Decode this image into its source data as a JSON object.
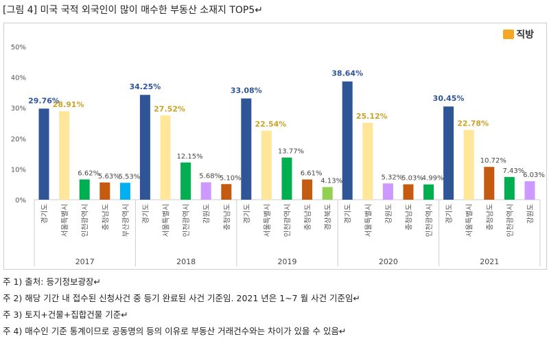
{
  "title": "[그림 4] 미국 국적 외국인이 많이 매수한 부동산 소재지 TOP5↵",
  "logo": "직방",
  "notes": [
    "주 1) 출처: 등기정보광장↵",
    "주 2) 해당 기간 내 접수된 신청사건 중 등기 완료된 사건 기준임. 2021 년은 1~7 월 사건 기준임↵",
    "주 3) 토지+건물+집합건물 기준↵",
    "주 4) 매수인 기준 통계이므로 공동명의 등의 이유로 부동산 거래건수와는 차이가 있을 수 있음↵"
  ],
  "chart_data": {
    "type": "bar",
    "ylim": [
      0,
      50
    ],
    "yticks": [
      "0%",
      "10%",
      "20%",
      "30%",
      "40%",
      "50%"
    ],
    "grid": false,
    "colors": {
      "경기도": "#2F5597",
      "서울특별시": "#FFE699",
      "인천광역시": "#00B050",
      "충청남도": "#C55A11",
      "부산광역시": "#00B0F0",
      "강원도": "#CC99FF",
      "경상북도": "#92D050"
    },
    "groups": [
      {
        "year": "2017",
        "bars": [
          {
            "region": "경기도",
            "value": 29.76,
            "label": "29.76%"
          },
          {
            "region": "서울특별시",
            "value": 28.91,
            "label": "28.91%"
          },
          {
            "region": "인천광역시",
            "value": 6.62,
            "label": "6.62%"
          },
          {
            "region": "충청남도",
            "value": 5.63,
            "label": "5.63%"
          },
          {
            "region": "부산광역시",
            "value": 5.53,
            "label": "5.53%"
          }
        ]
      },
      {
        "year": "2018",
        "bars": [
          {
            "region": "경기도",
            "value": 34.25,
            "label": "34.25%"
          },
          {
            "region": "서울특별시",
            "value": 27.52,
            "label": "27.52%"
          },
          {
            "region": "인천광역시",
            "value": 12.15,
            "label": "12.15%"
          },
          {
            "region": "강원도",
            "value": 5.68,
            "label": "5.68%"
          },
          {
            "region": "충청남도",
            "value": 5.1,
            "label": "5.10%"
          }
        ]
      },
      {
        "year": "2019",
        "bars": [
          {
            "region": "경기도",
            "value": 33.08,
            "label": "33.08%"
          },
          {
            "region": "서울특별시",
            "value": 22.54,
            "label": "22.54%"
          },
          {
            "region": "인천광역시",
            "value": 13.77,
            "label": "13.77%"
          },
          {
            "region": "충청남도",
            "value": 6.61,
            "label": "6.61%"
          },
          {
            "region": "경상북도",
            "value": 4.13,
            "label": "4.13%"
          }
        ]
      },
      {
        "year": "2020",
        "bars": [
          {
            "region": "경기도",
            "value": 38.64,
            "label": "38.64%"
          },
          {
            "region": "서울특별시",
            "value": 25.12,
            "label": "25.12%"
          },
          {
            "region": "강원도",
            "value": 5.32,
            "label": "5.32%"
          },
          {
            "region": "충청남도",
            "value": 5.03,
            "label": "5.03%"
          },
          {
            "region": "인천광역시",
            "value": 4.99,
            "label": "4.99%"
          }
        ]
      },
      {
        "year": "2021",
        "bars": [
          {
            "region": "경기도",
            "value": 30.45,
            "label": "30.45%"
          },
          {
            "region": "서울특별시",
            "value": 22.78,
            "label": "22.78%"
          },
          {
            "region": "충청남도",
            "value": 10.72,
            "label": "10.72%"
          },
          {
            "region": "인천광역시",
            "value": 7.43,
            "label": "7.43%"
          },
          {
            "region": "강원도",
            "value": 6.03,
            "label": "6.03%"
          }
        ]
      }
    ]
  }
}
